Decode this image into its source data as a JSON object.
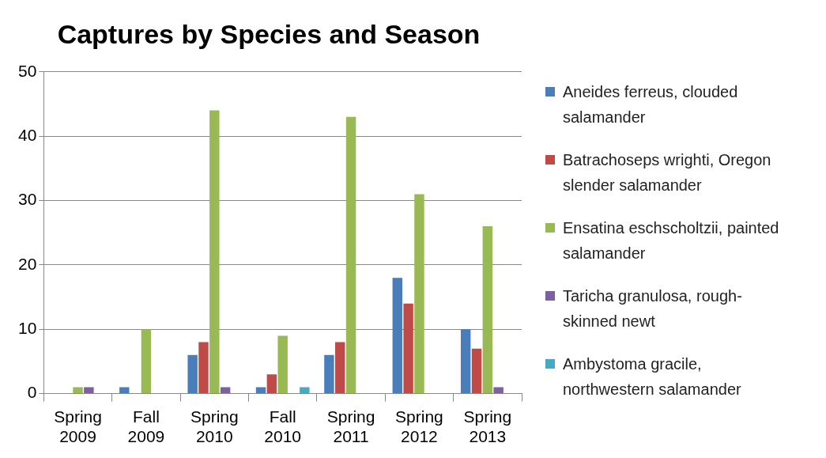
{
  "chart_data": {
    "type": "bar",
    "title": "Captures by Species and Season",
    "categories": [
      "Spring\n2009",
      "Fall\n2009",
      "Spring\n2010",
      "Fall\n2010",
      "Spring\n2011",
      "Spring\n2012",
      "Spring\n2013"
    ],
    "series": [
      {
        "name": "Aneides ferreus, clouded salamander",
        "color": "#4a7ebb",
        "values": [
          0,
          1,
          6,
          1,
          6,
          18,
          10
        ]
      },
      {
        "name": "Batrachoseps wrighti, Oregon slender salamander",
        "color": "#be4b48",
        "values": [
          0,
          0,
          8,
          3,
          8,
          14,
          7
        ]
      },
      {
        "name": "Ensatina eschscholtzii, painted salamander",
        "color": "#98b954",
        "values": [
          1,
          10,
          44,
          9,
          43,
          31,
          26
        ]
      },
      {
        "name": "Taricha granulosa, rough-skinned newt",
        "color": "#7d60a0",
        "values": [
          1,
          0,
          1,
          0,
          0,
          0,
          1
        ]
      },
      {
        "name": "Ambystoma gracile, northwestern salamander",
        "color": "#46aac5",
        "values": [
          0,
          0,
          0,
          1,
          0,
          0,
          0
        ]
      }
    ],
    "ylim": [
      0,
      50
    ],
    "yticks": [
      0,
      10,
      20,
      30,
      40,
      50
    ],
    "grid": "y",
    "legend": "right"
  }
}
